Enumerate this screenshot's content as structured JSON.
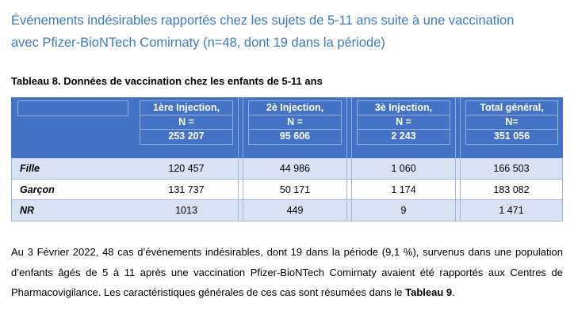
{
  "title": {
    "line1": "Événements indésirables rapportés chez les sujets de 5-11 ans suite à une vaccination",
    "line2": "avec Pfizer-BioNTech Comirnaty (n=48, dont 19 dans la période)"
  },
  "table_caption": "Tableau 8. Données de vaccination chez les enfants de 5-11 ans",
  "table": {
    "columns": [
      {
        "label": "1ère Injection,",
        "n_label": "N =",
        "n_value": "253 207"
      },
      {
        "label": "2è Injection,",
        "n_label": "N =",
        "n_value": "95 606"
      },
      {
        "label": "3è Injection,",
        "n_label": "N =",
        "n_value": "2 243"
      },
      {
        "label": "Total général,",
        "n_label": "N=",
        "n_value": "351 056"
      }
    ],
    "rows": [
      {
        "label": "Fille",
        "values": [
          "120 457",
          "44 986",
          "1 060",
          "166 503"
        ]
      },
      {
        "label": "Garçon",
        "values": [
          "131 737",
          "50 171",
          "1 174",
          "183 082"
        ]
      },
      {
        "label": "NR",
        "values": [
          "1013",
          "449",
          "9",
          "1 471"
        ]
      }
    ]
  },
  "paragraph": {
    "before": "Au 3 Février 2022, 48 cas d’événements indésirables, dont 19 dans la période (9,1 %), survenus dans une population d’enfants âgés de 5 à 11 après une vaccination Pfizer-BioNTech Comirnaty avaient été rapportés aux Centres de Pharmacovigilance. Les caractéristiques générales de ces cas sont résumées dans le ",
    "bold": "Tableau 9",
    "after": "."
  },
  "colors": {
    "title_blue": "#3B7BC4",
    "header_blue": "#4472C4",
    "band_blue": "#D9E2F3",
    "border_blue": "#8EAADB"
  }
}
